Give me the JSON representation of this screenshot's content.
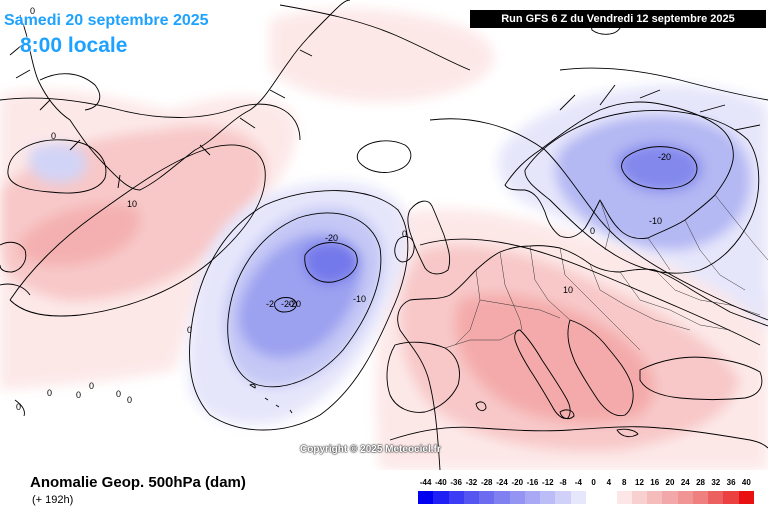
{
  "header": {
    "date_title": "Samedi 20 septembre 2025",
    "time_title": "8:00 locale",
    "run_info": "Run GFS 6 Z du Vendredi 12 septembre 2025",
    "title_color": "#1fa2ff"
  },
  "map": {
    "copyright": "Copyright © 2025 Meteociel.fr",
    "contour_labels": [
      {
        "value": "0"
      },
      {
        "value": "0"
      },
      {
        "value": "0"
      },
      {
        "value": "0"
      },
      {
        "value": "0"
      },
      {
        "value": "0"
      },
      {
        "value": "0"
      },
      {
        "value": "0"
      },
      {
        "value": "0"
      },
      {
        "value": "0"
      },
      {
        "value": "0"
      },
      {
        "value": "-10"
      },
      {
        "value": "-10"
      },
      {
        "value": "10"
      },
      {
        "value": "10"
      },
      {
        "value": "-20"
      },
      {
        "value": "-20"
      },
      {
        "value": "-2"
      },
      {
        "value": "-20"
      },
      {
        "value": "-20"
      },
      {
        "value": "-10"
      }
    ],
    "features": [
      {
        "name": "negative-anomaly-atlantic",
        "min_dam": -24
      },
      {
        "name": "negative-anomaly-scandinavia",
        "min_dam": -22
      },
      {
        "name": "positive-anomaly-mediterranean",
        "max_dam": 14
      },
      {
        "name": "positive-anomaly-north-atlantic",
        "max_dam": 13
      }
    ],
    "colors": {
      "neg_light": "#e8e8fc",
      "neg_mid": "#c5c8f5",
      "neg_strong": "#9a9ff0",
      "neg_core": "#7479ea",
      "pos_light": "#fde8e8",
      "pos_mid": "#f8c8c8",
      "pos_strong": "#f4a8a8",
      "coast": "#000000",
      "border": "#222222"
    }
  },
  "footer": {
    "parameter_title": "Anomalie Geop. 500hPa (dam)",
    "lead_time": "(+ 192h)"
  },
  "legend": {
    "labels": [
      "-44",
      "-40",
      "-36",
      "-32",
      "-28",
      "-24",
      "-20",
      "-16",
      "-12",
      "-8",
      "-4",
      "0",
      "4",
      "8",
      "12",
      "16",
      "20",
      "24",
      "28",
      "32",
      "36",
      "40"
    ],
    "colors": [
      "#0000f0",
      "#2020f4",
      "#3c3cf4",
      "#5555f2",
      "#6c6cf0",
      "#8080f0",
      "#9494f2",
      "#a8a8f4",
      "#bcbcf6",
      "#d0d0f8",
      "#e6e6fc",
      "#ffffff",
      "#ffffff",
      "#fce6e6",
      "#f8d0d0",
      "#f5bcbc",
      "#f2a8a8",
      "#f09494",
      "#ee8080",
      "#ec6060",
      "#ea4040",
      "#e81010"
    ]
  }
}
